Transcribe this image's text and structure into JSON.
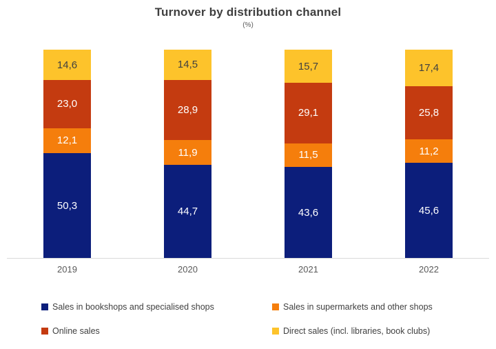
{
  "title": "Turnover by distribution channel",
  "subtitle": "(%)",
  "colors": {
    "axis_line": "#d9d9d9",
    "title_text": "#3e3e3e",
    "tick_text": "#595959",
    "legend_text": "#404040"
  },
  "chart_data": {
    "type": "bar",
    "stacked": true,
    "title": "Turnover by distribution channel",
    "subtitle": "(%)",
    "xlabel": "",
    "ylabel": "",
    "ylim": [
      0,
      100
    ],
    "grid": false,
    "legend_position": "bottom",
    "value_label_decimal_separator": ",",
    "categories": [
      "2019",
      "2020",
      "2021",
      "2022"
    ],
    "series": [
      {
        "name": "Sales in bookshops and specialised shops",
        "color": "#0c1e7b",
        "label_color": "#ffffff",
        "values": [
          50.3,
          44.7,
          43.6,
          45.6
        ]
      },
      {
        "name": "Sales in supermarkets and other shops",
        "color": "#f57e0c",
        "label_color": "#ffffff",
        "values": [
          12.1,
          11.9,
          11.5,
          11.2
        ]
      },
      {
        "name": "Online sales",
        "color": "#c43b10",
        "label_color": "#ffffff",
        "values": [
          23.0,
          28.9,
          29.1,
          25.8
        ]
      },
      {
        "name": "Direct sales (incl. libraries, book clubs)",
        "color": "#fdc32b",
        "label_color": "#404040",
        "values": [
          14.6,
          14.5,
          15.7,
          17.4
        ]
      }
    ]
  },
  "legend": {
    "items": [
      {
        "label": "Sales in bookshops and specialised shops",
        "color": "#0c1e7b"
      },
      {
        "label": "Sales in supermarkets and other shops",
        "color": "#f57e0c"
      },
      {
        "label": "Online sales",
        "color": "#c43b10"
      },
      {
        "label": "Direct sales (incl. libraries, book clubs)",
        "color": "#fdc32b"
      }
    ]
  }
}
